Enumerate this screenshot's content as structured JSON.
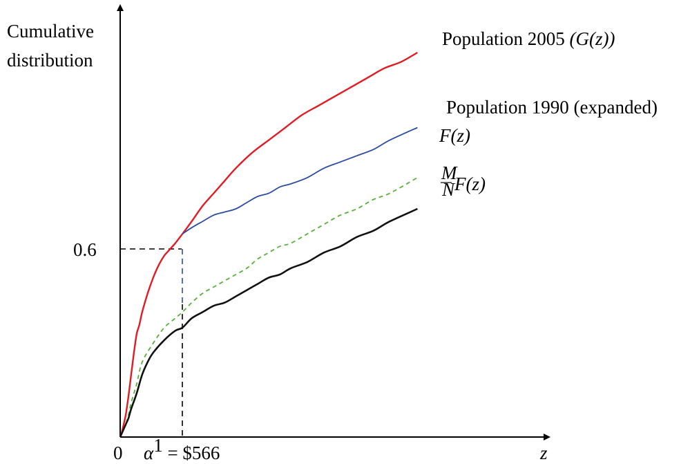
{
  "chart_data": {
    "type": "line",
    "ylabel_line1": "Cumulative",
    "ylabel_line2": "distribution",
    "xlabel": "z",
    "origin_label": "0",
    "y_marker_label": "0.6",
    "x_marker_label": "α¹ = $566",
    "x_marker_label_alpha": "α",
    "x_marker_label_sup": "1",
    "x_marker_label_rest": " = $566",
    "y_marker_value": 0.6,
    "x_marker_value": 566,
    "grid": false,
    "series": [
      {
        "name": "Population 2005 (G(z))",
        "label_text": "Population 2005 ",
        "label_math": "(G(z))",
        "color": "#e01b24",
        "style": "solid",
        "points": [
          [
            0,
            0
          ],
          [
            10,
            0.01
          ],
          [
            25,
            0.03
          ],
          [
            50,
            0.07
          ],
          [
            75,
            0.13
          ],
          [
            100,
            0.2
          ],
          [
            125,
            0.27
          ],
          [
            150,
            0.33
          ],
          [
            175,
            0.36
          ],
          [
            200,
            0.4
          ],
          [
            250,
            0.46
          ],
          [
            300,
            0.51
          ],
          [
            350,
            0.55
          ],
          [
            400,
            0.58
          ],
          [
            450,
            0.6
          ],
          [
            500,
            0.62
          ],
          [
            566,
            0.65
          ],
          [
            650,
            0.69
          ],
          [
            750,
            0.74
          ],
          [
            850,
            0.78
          ],
          [
            950,
            0.82
          ],
          [
            1050,
            0.86
          ],
          [
            1200,
            0.91
          ],
          [
            1350,
            0.95
          ],
          [
            1500,
            0.99
          ],
          [
            1650,
            1.03
          ],
          [
            1800,
            1.06
          ],
          [
            1950,
            1.09
          ],
          [
            2100,
            1.12
          ],
          [
            2250,
            1.15
          ],
          [
            2400,
            1.18
          ],
          [
            2550,
            1.2
          ],
          [
            2700,
            1.23
          ]
        ]
      },
      {
        "name": "Population 1990 (expanded)",
        "label_text": "Population 1990 (expanded)",
        "color": "#2b4c9e",
        "style": "solid",
        "points": [
          [
            566,
            0.65
          ],
          [
            650,
            0.67
          ],
          [
            750,
            0.69
          ],
          [
            850,
            0.71
          ],
          [
            950,
            0.72
          ],
          [
            1050,
            0.73
          ],
          [
            1150,
            0.75
          ],
          [
            1250,
            0.77
          ],
          [
            1350,
            0.78
          ],
          [
            1450,
            0.8
          ],
          [
            1550,
            0.81
          ],
          [
            1700,
            0.83
          ],
          [
            1850,
            0.86
          ],
          [
            2000,
            0.88
          ],
          [
            2150,
            0.9
          ],
          [
            2300,
            0.92
          ],
          [
            2450,
            0.95
          ],
          [
            2700,
            0.99
          ]
        ]
      },
      {
        "name": "F(z)",
        "label_math": "F(z)",
        "color": "#55b03a",
        "style": "dashed",
        "points": [
          [
            0,
            0
          ],
          [
            25,
            0.02
          ],
          [
            50,
            0.04
          ],
          [
            75,
            0.07
          ],
          [
            100,
            0.11
          ],
          [
            150,
            0.17
          ],
          [
            200,
            0.24
          ],
          [
            300,
            0.3
          ],
          [
            400,
            0.35
          ],
          [
            500,
            0.38
          ],
          [
            566,
            0.4
          ],
          [
            650,
            0.43
          ],
          [
            750,
            0.46
          ],
          [
            850,
            0.48
          ],
          [
            950,
            0.5
          ],
          [
            1050,
            0.52
          ],
          [
            1150,
            0.54
          ],
          [
            1250,
            0.57
          ],
          [
            1350,
            0.59
          ],
          [
            1450,
            0.61
          ],
          [
            1550,
            0.62
          ],
          [
            1700,
            0.65
          ],
          [
            1850,
            0.68
          ],
          [
            2000,
            0.71
          ],
          [
            2150,
            0.73
          ],
          [
            2300,
            0.76
          ],
          [
            2450,
            0.78
          ],
          [
            2700,
            0.83
          ]
        ]
      },
      {
        "name": "M/N F(z)",
        "label_frac_num": "M",
        "label_frac_den": "N",
        "label_math": "F(z)",
        "color": "#111111",
        "style": "solid",
        "points": [
          [
            0,
            0
          ],
          [
            25,
            0.02
          ],
          [
            50,
            0.04
          ],
          [
            75,
            0.06
          ],
          [
            100,
            0.09
          ],
          [
            150,
            0.14
          ],
          [
            200,
            0.2
          ],
          [
            250,
            0.24
          ],
          [
            300,
            0.27
          ],
          [
            400,
            0.31
          ],
          [
            500,
            0.34
          ],
          [
            566,
            0.35
          ],
          [
            650,
            0.38
          ],
          [
            750,
            0.4
          ],
          [
            850,
            0.42
          ],
          [
            950,
            0.43
          ],
          [
            1050,
            0.45
          ],
          [
            1150,
            0.47
          ],
          [
            1250,
            0.49
          ],
          [
            1350,
            0.51
          ],
          [
            1450,
            0.52
          ],
          [
            1550,
            0.54
          ],
          [
            1700,
            0.56
          ],
          [
            1850,
            0.59
          ],
          [
            2000,
            0.61
          ],
          [
            2150,
            0.64
          ],
          [
            2300,
            0.66
          ],
          [
            2450,
            0.69
          ],
          [
            2700,
            0.73
          ]
        ]
      }
    ]
  }
}
